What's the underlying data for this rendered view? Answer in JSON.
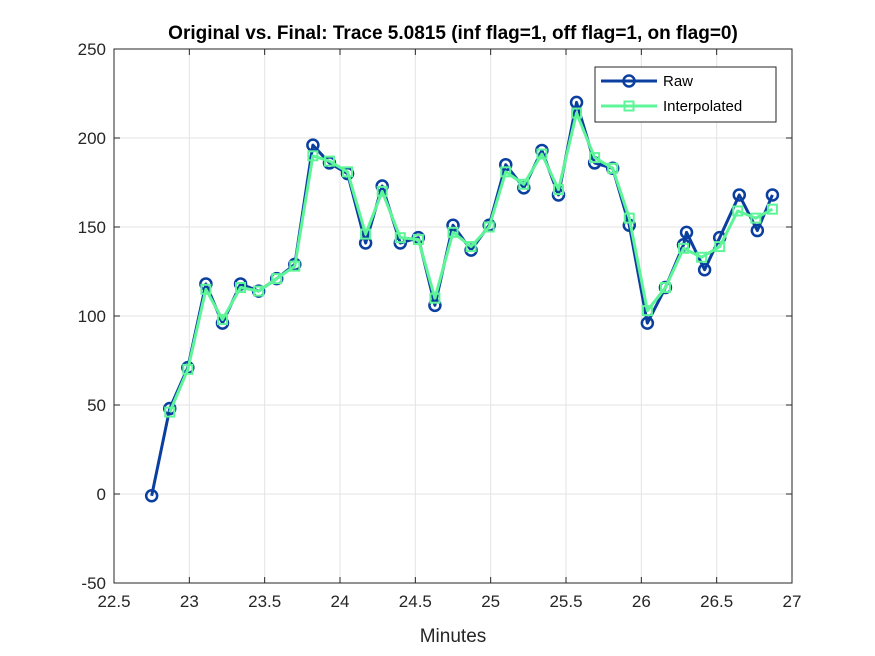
{
  "chart_data": {
    "type": "line",
    "title": "Original vs. Final: Trace 5.0815 (inf flag=1, off flag=1, on flag=0)",
    "xlabel": "Minutes",
    "ylabel": "",
    "xlim": [
      22.5,
      27
    ],
    "ylim": [
      -50,
      250
    ],
    "xticks": [
      "22.5",
      "23",
      "23.5",
      "24",
      "24.5",
      "25",
      "25.5",
      "26",
      "26.5",
      "27"
    ],
    "yticks": [
      "-50",
      "0",
      "50",
      "100",
      "150",
      "200",
      "250"
    ],
    "grid": true,
    "legend_position": "top-right",
    "series": [
      {
        "name": "Raw",
        "color": "#0a3fa0",
        "marker": "circle",
        "x": [
          22.75,
          22.87,
          22.99,
          23.11,
          23.22,
          23.34,
          23.46,
          23.58,
          23.7,
          23.82,
          23.93,
          24.05,
          24.17,
          24.28,
          24.4,
          24.52,
          24.63,
          24.75,
          24.87,
          24.99,
          25.1,
          25.22,
          25.34,
          25.45,
          25.57,
          25.69,
          25.81,
          25.92,
          26.04,
          26.16,
          26.28,
          26.3,
          26.42,
          26.52,
          26.65,
          26.77,
          26.87
        ],
        "y": [
          -1,
          48,
          71,
          118,
          96,
          118,
          114,
          121,
          129,
          196,
          186,
          180,
          141,
          173,
          141,
          144,
          106,
          151,
          137,
          151,
          185,
          172,
          193,
          168,
          220,
          186,
          183,
          151,
          96,
          116,
          140,
          147,
          126,
          144,
          168,
          148,
          168
        ]
      },
      {
        "name": "Interpolated",
        "color": "#5ef598",
        "marker": "square",
        "x": [
          22.87,
          22.99,
          23.11,
          23.22,
          23.34,
          23.46,
          23.58,
          23.7,
          23.82,
          23.93,
          24.05,
          24.17,
          24.28,
          24.4,
          24.52,
          24.63,
          24.75,
          24.87,
          24.99,
          25.1,
          25.22,
          25.34,
          25.45,
          25.57,
          25.69,
          25.81,
          25.92,
          26.04,
          26.16,
          26.28,
          26.4,
          26.52,
          26.64,
          26.76,
          26.87
        ],
        "y": [
          46,
          70,
          115,
          98,
          116,
          114,
          121,
          128,
          190,
          187,
          181,
          146,
          170,
          144,
          143,
          110,
          147,
          139,
          150,
          181,
          174,
          191,
          171,
          214,
          189,
          183,
          155,
          103,
          116,
          138,
          133,
          139,
          159,
          155,
          160
        ]
      }
    ]
  }
}
